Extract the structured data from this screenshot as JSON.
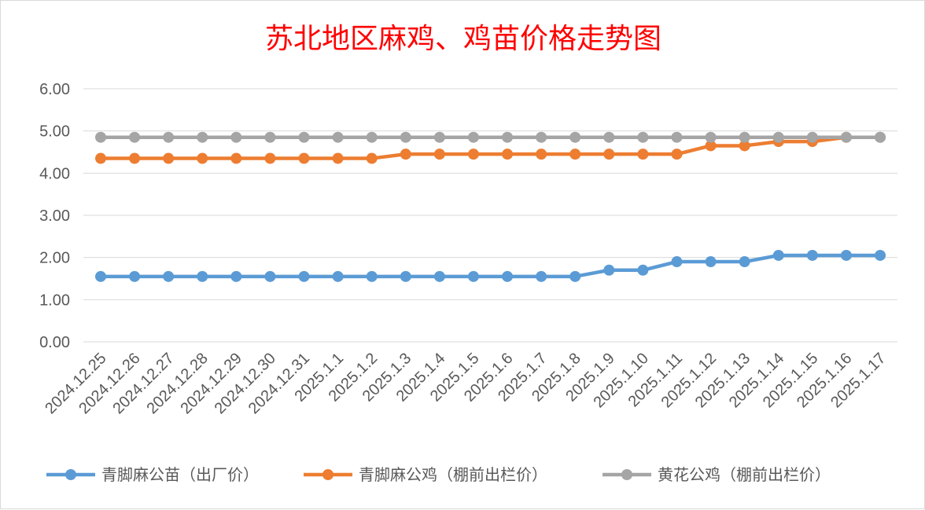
{
  "chart_data": {
    "type": "line",
    "title": "苏北地区麻鸡、鸡苗价格走势图",
    "xlabel": "",
    "ylabel": "",
    "ylim": [
      0,
      6
    ],
    "yticks": [
      "0.00",
      "1.00",
      "2.00",
      "3.00",
      "4.00",
      "5.00",
      "6.00"
    ],
    "grid": true,
    "legend_position": "bottom",
    "categories": [
      "2024.12.25",
      "2024.12.26",
      "2024.12.27",
      "2024.12.28",
      "2024.12.29",
      "2024.12.30",
      "2024.12.31",
      "2025.1.1",
      "2025.1.2",
      "2025.1.3",
      "2025.1.4",
      "2025.1.5",
      "2025.1.6",
      "2025.1.7",
      "2025.1.8",
      "2025.1.9",
      "2025.1.10",
      "2025.1.11",
      "2025.1.12",
      "2025.1.13",
      "2025.1.14",
      "2025.1.15",
      "2025.1.16",
      "2025.1.17"
    ],
    "series": [
      {
        "name": "青脚麻公苗（出厂价）",
        "color": "#5b9bd5",
        "values": [
          1.55,
          1.55,
          1.55,
          1.55,
          1.55,
          1.55,
          1.55,
          1.55,
          1.55,
          1.55,
          1.55,
          1.55,
          1.55,
          1.55,
          1.55,
          1.7,
          1.7,
          1.9,
          1.9,
          1.9,
          2.05,
          2.05,
          2.05,
          2.05
        ]
      },
      {
        "name": "青脚麻公鸡（棚前出栏价）",
        "color": "#ed7d31",
        "values": [
          4.35,
          4.35,
          4.35,
          4.35,
          4.35,
          4.35,
          4.35,
          4.35,
          4.35,
          4.45,
          4.45,
          4.45,
          4.45,
          4.45,
          4.45,
          4.45,
          4.45,
          4.45,
          4.65,
          4.65,
          4.75,
          4.75,
          4.85,
          4.85
        ]
      },
      {
        "name": "黄花公鸡（棚前出栏价）",
        "color": "#a5a5a5",
        "values": [
          4.85,
          4.85,
          4.85,
          4.85,
          4.85,
          4.85,
          4.85,
          4.85,
          4.85,
          4.85,
          4.85,
          4.85,
          4.85,
          4.85,
          4.85,
          4.85,
          4.85,
          4.85,
          4.85,
          4.85,
          4.85,
          4.85,
          4.85,
          4.85
        ]
      }
    ]
  }
}
